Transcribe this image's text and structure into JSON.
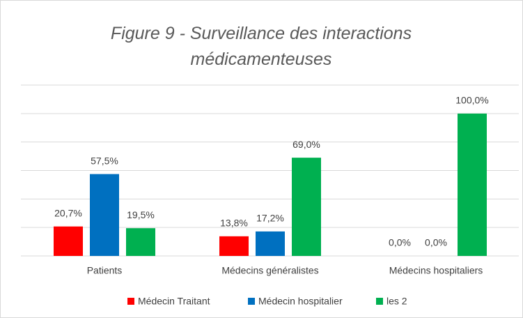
{
  "chart_data": {
    "type": "bar",
    "title": "Figure 9 - Surveillance des interactions médicamenteuses",
    "categories": [
      "Patients",
      "Médecins généralistes",
      "Médecins hospitaliers"
    ],
    "series": [
      {
        "name": "Médecin Traitant",
        "color": "#ff0000",
        "values": [
          20.7,
          13.8,
          0.0
        ],
        "value_labels": [
          "20,7%",
          "13,8%",
          "0,0%"
        ]
      },
      {
        "name": "Médecin hospitalier",
        "color": "#0070c0",
        "values": [
          57.5,
          17.2,
          0.0
        ],
        "value_labels": [
          "57,5%",
          "17,2%",
          "0,0%"
        ]
      },
      {
        "name": "les 2",
        "color": "#00b050",
        "values": [
          19.5,
          69.0,
          100.0
        ],
        "value_labels": [
          "19,5%",
          "69,0%",
          "100,0%"
        ]
      }
    ],
    "ylim": [
      0,
      120
    ],
    "yticks": [
      0,
      20,
      40,
      60,
      80,
      100,
      120
    ],
    "grid": true,
    "legend": "bottom"
  }
}
